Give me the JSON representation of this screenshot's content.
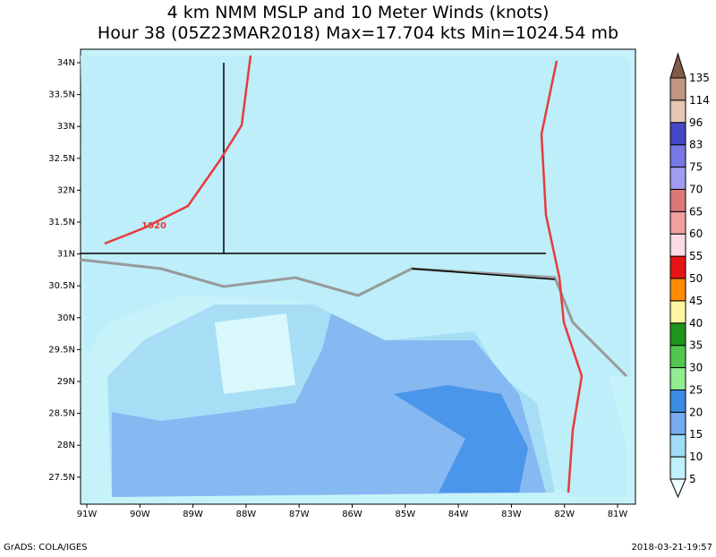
{
  "header": {
    "title": "4 km NMM MSLP and 10 Meter Winds (knots)",
    "subtitle": "Hour 38 (05Z23MAR2018) Max=17.704 kts Min=1024.54 mb"
  },
  "map": {
    "lat_labels": [
      "34N",
      "33.5N",
      "33N",
      "32.5N",
      "32N",
      "31.5N",
      "31N",
      "30.5N",
      "30N",
      "29.5N",
      "29N",
      "28.5N",
      "28N",
      "27.5N"
    ],
    "lon_labels": [
      "91W",
      "90W",
      "89W",
      "88W",
      "87W",
      "86W",
      "85W",
      "84W",
      "83W",
      "82W",
      "81W"
    ],
    "contour_label": "1020"
  },
  "colorbar": {
    "levels": [
      5,
      10,
      15,
      20,
      25,
      30,
      35,
      40,
      45,
      50,
      55,
      60,
      65,
      70,
      75,
      83,
      96,
      114,
      135
    ],
    "colors": [
      "#f0ffff",
      "#c0f0fa",
      "#a0dcf5",
      "#78aaf0",
      "#3c8ce6",
      "#90ee90",
      "#50c850",
      "#1e961e",
      "#fff5a0",
      "#ff8c00",
      "#e61414",
      "#fadce6",
      "#f0a0a0",
      "#dc7878",
      "#a09cf0",
      "#7878e6",
      "#4646c8",
      "#e6c8b4",
      "#be9682",
      "#825a46"
    ]
  },
  "footer": {
    "left": "GrADS: COLA/IGES",
    "right": "2018-03-21-19:57"
  }
}
